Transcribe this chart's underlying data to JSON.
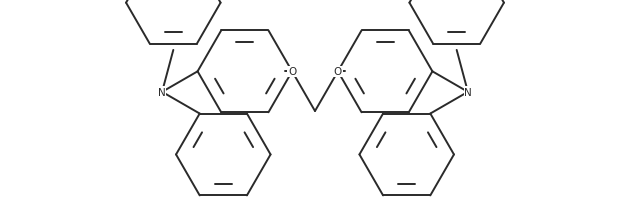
{
  "bg_color": "#ffffff",
  "line_color": "#2a2a2a",
  "line_width": 1.4,
  "figsize": [
    6.3,
    2.07
  ],
  "dpi": 100,
  "xlim": [
    -4.5,
    4.5
  ],
  "ylim": [
    -1.8,
    1.8
  ]
}
